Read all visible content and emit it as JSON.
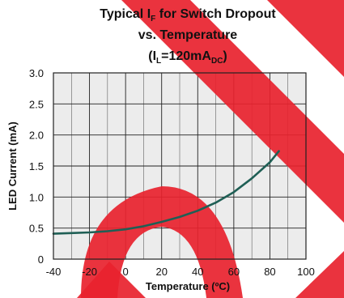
{
  "chart_data": {
    "type": "line",
    "title": {
      "line1_a": "Typical I",
      "line1_sub": "F",
      "line1_b": " for Switch Dropout",
      "line2": "vs. Temperature",
      "line3_a": "(I",
      "line3_sub1": "L",
      "line3_b": "=120mA",
      "line3_sub2": "DC",
      "line3_c": ")"
    },
    "xlabel": "Temperature (ºC)",
    "ylabel": "LED Current (mA)",
    "x_ticks": [
      "-40",
      "-20",
      "0",
      "20",
      "40",
      "60",
      "80",
      "100"
    ],
    "y_ticks": [
      "0",
      "0.5",
      "1.0",
      "1.5",
      "2.0",
      "2.5",
      "3.0"
    ],
    "xlim": [
      -40,
      100
    ],
    "ylim": [
      0,
      3.0
    ],
    "grid": true,
    "series": [
      {
        "color": "#1f5f55",
        "x": [
          -40,
          -30,
          -20,
          -10,
          0,
          10,
          20,
          30,
          40,
          50,
          60,
          70,
          80,
          85
        ],
        "y": [
          0.41,
          0.42,
          0.43,
          0.45,
          0.48,
          0.53,
          0.6,
          0.68,
          0.78,
          0.91,
          1.08,
          1.3,
          1.56,
          1.74
        ]
      }
    ],
    "watermark_color": "#e8222e"
  }
}
